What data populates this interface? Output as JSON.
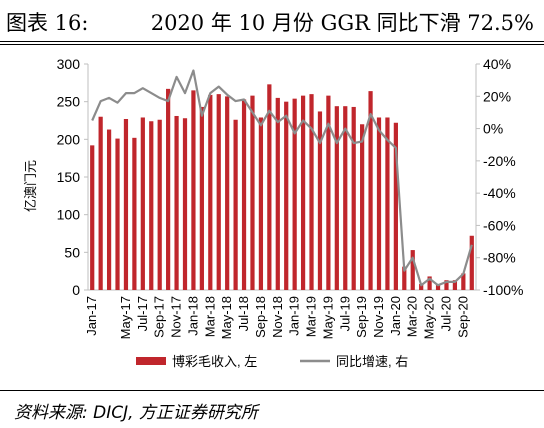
{
  "header": {
    "label": "图表 16:",
    "title": "2020 年 10 月份 GGR 同比下滑 72.5%"
  },
  "footer": {
    "source": "资料来源: DICJ, 方正证券研究所"
  },
  "colors": {
    "bar": "#c0262c",
    "line": "#8c8c8c",
    "axis": "#bfbfbf"
  },
  "chart_data": {
    "type": "bar",
    "ylabel": "亿澳门元",
    "ylim": [
      0,
      300
    ],
    "y2lim": [
      -100,
      40
    ],
    "yticks": [
      "0",
      "50",
      "100",
      "150",
      "200",
      "250",
      "300"
    ],
    "y2ticks": [
      "-100%",
      "-80%",
      "-60%",
      "-40%",
      "-20%",
      "0%",
      "20%",
      "40%"
    ],
    "legend_position": "bottom",
    "categories": [
      "Jan-17",
      "Feb-17",
      "Mar-17",
      "Apr-17",
      "May-17",
      "Jun-17",
      "Jul-17",
      "Aug-17",
      "Sep-17",
      "Oct-17",
      "Nov-17",
      "Dec-17",
      "Jan-18",
      "Feb-18",
      "Mar-18",
      "Apr-18",
      "May-18",
      "Jun-18",
      "Jul-18",
      "Aug-18",
      "Sep-18",
      "Oct-18",
      "Nov-18",
      "Dec-18",
      "Jan-19",
      "Feb-19",
      "Mar-19",
      "Apr-19",
      "May-19",
      "Jun-19",
      "Jul-19",
      "Aug-19",
      "Sep-19",
      "Oct-19",
      "Nov-19",
      "Dec-19",
      "Jan-20",
      "Feb-20",
      "Mar-20",
      "Apr-20",
      "May-20",
      "Jun-20",
      "Jul-20",
      "Aug-20",
      "Sep-20",
      "Oct-20"
    ],
    "xtick_labels": [
      "Jan-17",
      "",
      "",
      "",
      "May-17",
      "",
      "Jul-17",
      "",
      "Sep-17",
      "",
      "Nov-17",
      "",
      "Jan-18",
      "",
      "Mar-18",
      "",
      "May-18",
      "",
      "Jul-18",
      "",
      "Sep-18",
      "",
      "Nov-18",
      "",
      "Jan-19",
      "",
      "Mar-19",
      "",
      "May-19",
      "",
      "Jul-19",
      "",
      "Sep-19",
      "",
      "Nov-19",
      "",
      "Jan-20",
      "",
      "Mar-20",
      "",
      "May-20",
      "",
      "Jul-20",
      "",
      "Sep-20",
      ""
    ],
    "series": [
      {
        "name": "博彩毛收入, 左",
        "axis": "left",
        "kind": "bar",
        "values": [
          192,
          230,
          213,
          201,
          227,
          202,
          229,
          224,
          226,
          267,
          231,
          228,
          265,
          243,
          259,
          260,
          257,
          226,
          253,
          258,
          229,
          273,
          255,
          250,
          254,
          258,
          260,
          237,
          258,
          244,
          244,
          243,
          220,
          264,
          229,
          229,
          222,
          31,
          53,
          8,
          18,
          7,
          13,
          13,
          22,
          72
        ]
      },
      {
        "name": "同比增速, 右",
        "axis": "right",
        "kind": "line",
        "values": [
          5,
          17,
          19,
          16,
          22,
          22,
          25,
          22,
          19,
          17,
          32,
          22,
          36,
          8,
          22,
          26,
          21,
          17,
          18,
          10,
          2,
          11,
          4,
          8,
          -3,
          5,
          0,
          -9,
          3,
          -9,
          0,
          -9,
          -8,
          9,
          -1,
          -7,
          -12,
          -88,
          -80,
          -97,
          -93,
          -97,
          -95,
          -95,
          -90,
          -72
        ]
      }
    ]
  }
}
